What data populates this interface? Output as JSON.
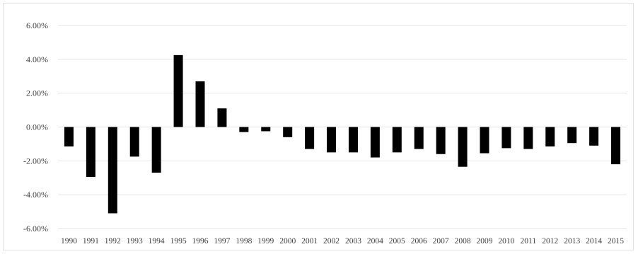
{
  "chart_data": {
    "type": "bar",
    "title": "",
    "xlabel": "",
    "ylabel": "",
    "categories": [
      "1990",
      "1991",
      "1992",
      "1993",
      "1994",
      "1995",
      "1996",
      "1997",
      "1998",
      "1999",
      "2000",
      "2001",
      "2002",
      "2003",
      "2004",
      "2005",
      "2006",
      "2007",
      "2008",
      "2009",
      "2010",
      "2011",
      "2012",
      "2013",
      "2014",
      "2015"
    ],
    "values": [
      -1.15,
      -2.95,
      -5.1,
      -1.75,
      -2.7,
      4.25,
      2.7,
      1.1,
      -0.3,
      -0.25,
      -0.6,
      -1.3,
      -1.5,
      -1.5,
      -1.8,
      -1.5,
      -1.3,
      -1.6,
      -2.35,
      -1.55,
      -1.25,
      -1.3,
      -1.15,
      -0.95,
      -1.1,
      -2.2
    ],
    "ylim": [
      -6,
      6
    ],
    "yticks": [
      6,
      4,
      2,
      0,
      -2,
      -4,
      -6
    ],
    "ytick_labels": [
      "6.00%",
      "4.00%",
      "2.00%",
      "0.00%",
      "-2.00%",
      "-4.00%",
      "-6.00%"
    ],
    "bar_color": "#000000",
    "grid": true,
    "legend": "none"
  }
}
